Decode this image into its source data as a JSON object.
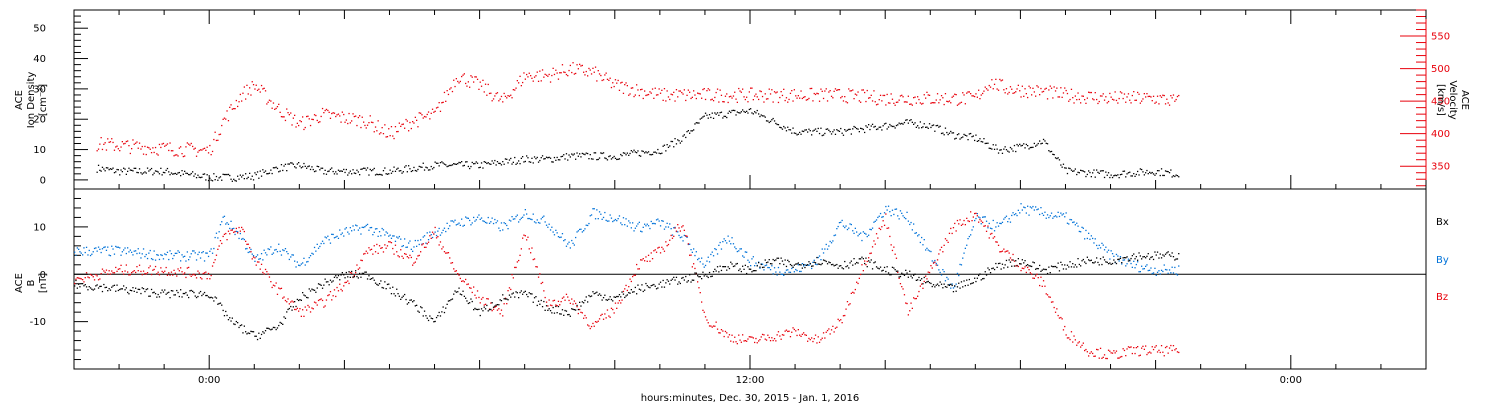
{
  "chart_data": [
    {
      "type": "scatter",
      "panel": "top",
      "ylabel": [
        "ACE",
        "Ion Density",
        "[cm⁻³]"
      ],
      "ylim": [
        -3,
        56
      ],
      "yticks": [
        0,
        10,
        20,
        30,
        40,
        50
      ],
      "ylabel_right": [
        "ACE",
        "Velocity",
        "[km/s]"
      ],
      "ylim_right": [
        315,
        590
      ],
      "yticks_right": [
        350,
        400,
        450,
        500,
        550
      ],
      "series": [
        {
          "axis": "left",
          "color": "#000000",
          "x": [
            -2.5,
            -2,
            -1,
            0,
            0.5,
            1,
            1.5,
            2,
            2.5,
            3,
            4,
            5,
            6,
            7,
            7.5,
            8,
            9,
            10,
            10.5,
            11,
            12,
            13,
            14,
            15,
            15.5,
            16,
            16.5,
            17,
            17.5,
            18,
            18.5,
            19,
            20,
            21,
            21.5
          ],
          "y": [
            4,
            3,
            3,
            1,
            1,
            1.5,
            4,
            5,
            3,
            3,
            3,
            5,
            5,
            7,
            7,
            8,
            8,
            10,
            14,
            21,
            23,
            16,
            16,
            18,
            19,
            18,
            15,
            14,
            10,
            11,
            13,
            3,
            2,
            3,
            2
          ]
        },
        {
          "axis": "right",
          "color": "#e8000b",
          "x": [
            -2.5,
            -1,
            0,
            0.3,
            0.7,
            1,
            1.5,
            2,
            2.5,
            3,
            3.5,
            4,
            4.5,
            5,
            5.5,
            6,
            6.5,
            7,
            7.5,
            8,
            8.5,
            9,
            10,
            11,
            12,
            13,
            14,
            15,
            16,
            17,
            17.3,
            17.7,
            18.5,
            19,
            20,
            21,
            21.5
          ],
          "y": [
            385,
            378,
            375,
            420,
            460,
            475,
            440,
            415,
            430,
            425,
            420,
            400,
            420,
            430,
            490,
            475,
            450,
            490,
            490,
            500,
            495,
            475,
            460,
            460,
            460,
            460,
            460,
            455,
            455,
            455,
            480,
            470,
            465,
            460,
            455,
            455,
            450
          ]
        }
      ]
    },
    {
      "type": "scatter",
      "panel": "bottom",
      "ylabel": [
        "ACE",
        "B",
        "[nT]"
      ],
      "ylim": [
        -20,
        18
      ],
      "yticks": [
        -10,
        0,
        10
      ],
      "legend": [
        "Bx",
        "By",
        "Bz"
      ],
      "legend_position": "right",
      "series": [
        {
          "name": "Bx",
          "color": "#000000",
          "x": [
            -3,
            -2,
            -1,
            0,
            0.5,
            1,
            1.5,
            2,
            2.5,
            3,
            3.5,
            4,
            4.5,
            5,
            5.5,
            6,
            6.5,
            7,
            7.5,
            8,
            8.5,
            9,
            9.5,
            10,
            10.5,
            11,
            11.5,
            12,
            12.5,
            13,
            13.5,
            14,
            14.5,
            15,
            15.5,
            16,
            16.5,
            17,
            17.5,
            18,
            18.5,
            19,
            19.5,
            20,
            20.5,
            21,
            21.5
          ],
          "y": [
            -2,
            -3,
            -4,
            -4,
            -10,
            -13,
            -11,
            -5,
            -2,
            0,
            0,
            -3,
            -6,
            -10,
            -3,
            -8,
            -5,
            -4,
            -7,
            -8,
            -4,
            -5,
            -3,
            -2,
            -1,
            0,
            2,
            1,
            3,
            2,
            3,
            2,
            3,
            1,
            0,
            -2,
            -3,
            -1,
            2,
            3,
            1,
            2,
            3,
            3,
            4,
            4,
            4
          ]
        },
        {
          "name": "By",
          "color": "#0072d8",
          "x": [
            -3,
            -2,
            -1,
            0,
            0.3,
            0.7,
            1,
            1.5,
            2,
            2.5,
            3,
            3.5,
            4,
            4.5,
            5,
            5.5,
            6,
            6.5,
            7,
            7.5,
            8,
            8.5,
            9,
            9.5,
            10,
            10.5,
            11,
            11.5,
            12,
            12.5,
            13,
            13.5,
            14,
            14.5,
            15,
            15.5,
            16,
            16.5,
            17,
            17.5,
            18,
            18.5,
            19,
            19.5,
            20,
            20.5,
            21,
            21.5
          ],
          "y": [
            5,
            5,
            4,
            4,
            12,
            8,
            3,
            6,
            2,
            7,
            9,
            10,
            8,
            6,
            9,
            11,
            12,
            10,
            13,
            11,
            6,
            13,
            12,
            10,
            11,
            8,
            2,
            8,
            3,
            1,
            1,
            3,
            11,
            8,
            14,
            12,
            4,
            -3,
            12,
            10,
            14,
            13,
            12,
            8,
            4,
            2,
            1,
            1
          ]
        },
        {
          "name": "Bz",
          "color": "#e8000b",
          "x": [
            -3,
            -2,
            -1,
            0,
            0.3,
            0.7,
            1,
            1.5,
            2,
            2.5,
            3,
            3.5,
            4,
            4.5,
            5,
            5.5,
            6,
            6.5,
            7,
            7.5,
            8,
            8.5,
            9,
            9.5,
            10,
            10.5,
            11,
            11.5,
            12,
            12.5,
            13,
            13.5,
            14,
            14.5,
            15,
            15.5,
            16,
            16.5,
            17,
            17.5,
            18,
            18.5,
            19,
            19.5,
            20,
            20.5,
            21,
            21.5
          ],
          "y": [
            -1,
            1,
            1,
            0,
            8,
            10,
            3,
            -3,
            -8,
            -6,
            -2,
            5,
            6,
            3,
            9,
            0,
            -5,
            -8,
            9,
            -6,
            -5,
            -11,
            -7,
            2,
            5,
            11,
            -9,
            -13,
            -14,
            -13,
            -12,
            -14,
            -10,
            2,
            12,
            -8,
            1,
            10,
            13,
            6,
            2,
            -2,
            -12,
            -16,
            -17,
            -16,
            -16,
            -16
          ]
        }
      ]
    }
  ],
  "xaxis": {
    "ticks": [
      "0:00",
      "12:00",
      "0:00"
    ],
    "tick_hours": [
      0,
      12,
      24
    ],
    "xlim": [
      -3,
      27
    ],
    "title": "hours:minutes, Dec. 30, 2015 - Jan.  1, 2016"
  }
}
